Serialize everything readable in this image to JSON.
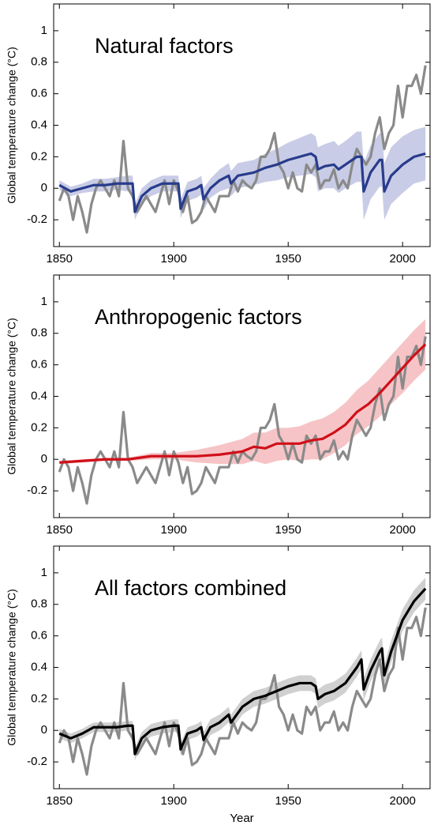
{
  "chart_data": [
    {
      "type": "line",
      "title": "Natural factors",
      "y_label": "Global temperature change (°C)",
      "xlim": [
        1847.5,
        2012
      ],
      "xticks": [
        1850,
        1900,
        1950,
        2000
      ],
      "ylim": [
        -0.37,
        1.17
      ],
      "yticks": [
        -0.2,
        0,
        0.2,
        0.4,
        0.6,
        0.8,
        1
      ],
      "observed": {
        "color": "#8a8a8a",
        "x": [
          1850,
          1852,
          1854,
          1856,
          1858,
          1860,
          1862,
          1864,
          1866,
          1868,
          1870,
          1872,
          1874,
          1876,
          1878,
          1880,
          1882,
          1884,
          1886,
          1888,
          1890,
          1892,
          1894,
          1896,
          1898,
          1900,
          1902,
          1904,
          1906,
          1908,
          1910,
          1912,
          1914,
          1916,
          1918,
          1920,
          1922,
          1924,
          1926,
          1928,
          1930,
          1932,
          1934,
          1936,
          1938,
          1940,
          1942,
          1944,
          1946,
          1948,
          1950,
          1952,
          1954,
          1956,
          1958,
          1960,
          1962,
          1964,
          1966,
          1968,
          1970,
          1972,
          1974,
          1976,
          1978,
          1980,
          1982,
          1984,
          1986,
          1988,
          1990,
          1992,
          1994,
          1996,
          1998,
          2000,
          2002,
          2004,
          2006,
          2008,
          2010
        ],
        "values": [
          -0.08,
          0.0,
          -0.05,
          -0.2,
          -0.05,
          -0.15,
          -0.28,
          -0.1,
          0.0,
          0.05,
          0.0,
          -0.05,
          0.05,
          -0.05,
          0.3,
          0.0,
          -0.05,
          -0.15,
          -0.1,
          -0.05,
          -0.1,
          -0.15,
          -0.05,
          0.05,
          -0.1,
          0.05,
          -0.02,
          -0.15,
          -0.05,
          -0.22,
          -0.2,
          -0.15,
          -0.05,
          -0.1,
          -0.15,
          -0.05,
          -0.05,
          -0.05,
          0.05,
          -0.02,
          0.05,
          0.02,
          0.0,
          0.05,
          0.2,
          0.2,
          0.25,
          0.35,
          0.15,
          0.1,
          0.0,
          0.1,
          0.0,
          -0.02,
          0.15,
          0.1,
          0.15,
          0.0,
          0.05,
          0.05,
          0.12,
          0.0,
          0.05,
          0.0,
          0.15,
          0.25,
          0.2,
          0.15,
          0.2,
          0.35,
          0.45,
          0.25,
          0.35,
          0.4,
          0.65,
          0.45,
          0.65,
          0.65,
          0.72,
          0.6,
          0.78
        ]
      },
      "model": {
        "color": "#283c8c",
        "x": [
          1850,
          1855,
          1860,
          1865,
          1870,
          1875,
          1880,
          1882,
          1883,
          1886,
          1890,
          1895,
          1900,
          1902,
          1903,
          1906,
          1910,
          1912,
          1913,
          1916,
          1920,
          1924,
          1925,
          1928,
          1935,
          1940,
          1945,
          1950,
          1955,
          1960,
          1962,
          1963,
          1966,
          1970,
          1972,
          1975,
          1980,
          1982,
          1983,
          1986,
          1990,
          1991,
          1992,
          1995,
          2000,
          2005,
          2010
        ],
        "values": [
          0.02,
          -0.02,
          0.0,
          0.02,
          0.02,
          0.03,
          0.03,
          0.03,
          -0.15,
          -0.05,
          0.0,
          0.03,
          0.03,
          0.03,
          -0.13,
          -0.02,
          0.0,
          0.02,
          -0.07,
          0.0,
          0.05,
          0.08,
          0.03,
          0.08,
          0.1,
          0.13,
          0.15,
          0.18,
          0.2,
          0.22,
          0.2,
          0.12,
          0.14,
          0.15,
          0.12,
          0.15,
          0.2,
          0.2,
          -0.02,
          0.1,
          0.18,
          0.18,
          -0.02,
          0.08,
          0.15,
          0.2,
          0.22
        ]
      },
      "band": {
        "color": "#c9cce6",
        "lower": [
          -0.01,
          -0.05,
          -0.03,
          -0.02,
          -0.02,
          -0.01,
          -0.02,
          -0.02,
          -0.2,
          -0.1,
          -0.05,
          -0.02,
          -0.02,
          -0.02,
          -0.19,
          -0.08,
          -0.06,
          -0.04,
          -0.14,
          -0.06,
          -0.02,
          0.0,
          -0.05,
          0.0,
          0.02,
          0.04,
          0.05,
          0.07,
          0.08,
          0.09,
          0.07,
          -0.02,
          0.0,
          0.0,
          -0.03,
          0.0,
          0.04,
          0.04,
          -0.2,
          -0.07,
          0.01,
          0.01,
          -0.2,
          -0.1,
          -0.03,
          0.03,
          0.05
        ],
        "upper": [
          0.05,
          0.01,
          0.03,
          0.06,
          0.06,
          0.07,
          0.08,
          0.08,
          -0.1,
          0.0,
          0.05,
          0.08,
          0.08,
          0.08,
          -0.07,
          0.04,
          0.06,
          0.08,
          0.0,
          0.06,
          0.12,
          0.16,
          0.11,
          0.16,
          0.18,
          0.22,
          0.25,
          0.29,
          0.32,
          0.35,
          0.33,
          0.26,
          0.28,
          0.3,
          0.27,
          0.3,
          0.36,
          0.36,
          0.16,
          0.27,
          0.35,
          0.35,
          0.16,
          0.26,
          0.33,
          0.37,
          0.39
        ]
      }
    },
    {
      "type": "line",
      "title": "Anthropogenic factors",
      "y_label": "Global temperature change (°C)",
      "xlim": [
        1847.5,
        2012
      ],
      "xticks": [
        1850,
        1900,
        1950,
        2000
      ],
      "ylim": [
        -0.37,
        1.17
      ],
      "yticks": [
        -0.2,
        0,
        0.2,
        0.4,
        0.6,
        0.8,
        1
      ],
      "observed": {
        "color": "#8a8a8a",
        "x": [
          1850,
          1852,
          1854,
          1856,
          1858,
          1860,
          1862,
          1864,
          1866,
          1868,
          1870,
          1872,
          1874,
          1876,
          1878,
          1880,
          1882,
          1884,
          1886,
          1888,
          1890,
          1892,
          1894,
          1896,
          1898,
          1900,
          1902,
          1904,
          1906,
          1908,
          1910,
          1912,
          1914,
          1916,
          1918,
          1920,
          1922,
          1924,
          1926,
          1928,
          1930,
          1932,
          1934,
          1936,
          1938,
          1940,
          1942,
          1944,
          1946,
          1948,
          1950,
          1952,
          1954,
          1956,
          1958,
          1960,
          1962,
          1964,
          1966,
          1968,
          1970,
          1972,
          1974,
          1976,
          1978,
          1980,
          1982,
          1984,
          1986,
          1988,
          1990,
          1992,
          1994,
          1996,
          1998,
          2000,
          2002,
          2004,
          2006,
          2008,
          2010
        ],
        "values": [
          -0.08,
          0.0,
          -0.05,
          -0.2,
          -0.05,
          -0.15,
          -0.28,
          -0.1,
          0.0,
          0.05,
          0.0,
          -0.05,
          0.05,
          -0.05,
          0.3,
          0.0,
          -0.05,
          -0.15,
          -0.1,
          -0.05,
          -0.1,
          -0.15,
          -0.05,
          0.05,
          -0.1,
          0.05,
          -0.02,
          -0.15,
          -0.05,
          -0.22,
          -0.2,
          -0.15,
          -0.05,
          -0.1,
          -0.15,
          -0.05,
          -0.05,
          -0.05,
          0.05,
          -0.02,
          0.05,
          0.02,
          0.0,
          0.05,
          0.2,
          0.2,
          0.25,
          0.35,
          0.15,
          0.1,
          0.0,
          0.1,
          0.0,
          -0.02,
          0.15,
          0.1,
          0.15,
          0.0,
          0.05,
          0.05,
          0.12,
          0.0,
          0.05,
          0.0,
          0.15,
          0.25,
          0.2,
          0.15,
          0.2,
          0.35,
          0.45,
          0.25,
          0.35,
          0.4,
          0.65,
          0.45,
          0.65,
          0.65,
          0.72,
          0.6,
          0.78
        ]
      },
      "model": {
        "color": "#d0101a",
        "x": [
          1850,
          1860,
          1870,
          1880,
          1890,
          1900,
          1910,
          1920,
          1930,
          1935,
          1940,
          1945,
          1950,
          1955,
          1960,
          1965,
          1970,
          1975,
          1980,
          1985,
          1990,
          1995,
          2000,
          2005,
          2010
        ],
        "values": [
          -0.02,
          -0.01,
          0.0,
          0.0,
          0.02,
          0.02,
          0.02,
          0.03,
          0.05,
          0.08,
          0.07,
          0.1,
          0.1,
          0.1,
          0.12,
          0.13,
          0.17,
          0.22,
          0.3,
          0.35,
          0.42,
          0.5,
          0.58,
          0.66,
          0.73
        ]
      },
      "band": {
        "color": "#f6c4c6",
        "lower": [
          -0.03,
          -0.02,
          -0.01,
          -0.01,
          0.0,
          0.0,
          -0.02,
          -0.03,
          -0.03,
          -0.01,
          -0.03,
          -0.01,
          0.0,
          -0.01,
          0.0,
          0.0,
          0.04,
          0.09,
          0.16,
          0.21,
          0.27,
          0.35,
          0.42,
          0.5,
          0.57
        ],
        "upper": [
          -0.01,
          0.0,
          0.01,
          0.01,
          0.04,
          0.04,
          0.06,
          0.09,
          0.13,
          0.17,
          0.17,
          0.2,
          0.2,
          0.21,
          0.24,
          0.26,
          0.3,
          0.36,
          0.44,
          0.5,
          0.58,
          0.66,
          0.74,
          0.82,
          0.89
        ]
      }
    },
    {
      "type": "line",
      "title": "All factors combined",
      "y_label": "Global temperature change (°C)",
      "x_label": "Year",
      "xlim": [
        1847.5,
        2012
      ],
      "xticks": [
        1850,
        1900,
        1950,
        2000
      ],
      "ylim": [
        -0.37,
        1.17
      ],
      "yticks": [
        -0.2,
        0,
        0.2,
        0.4,
        0.6,
        0.8,
        1
      ],
      "observed": {
        "color": "#8a8a8a",
        "x": [
          1850,
          1852,
          1854,
          1856,
          1858,
          1860,
          1862,
          1864,
          1866,
          1868,
          1870,
          1872,
          1874,
          1876,
          1878,
          1880,
          1882,
          1884,
          1886,
          1888,
          1890,
          1892,
          1894,
          1896,
          1898,
          1900,
          1902,
          1904,
          1906,
          1908,
          1910,
          1912,
          1914,
          1916,
          1918,
          1920,
          1922,
          1924,
          1926,
          1928,
          1930,
          1932,
          1934,
          1936,
          1938,
          1940,
          1942,
          1944,
          1946,
          1948,
          1950,
          1952,
          1954,
          1956,
          1958,
          1960,
          1962,
          1964,
          1966,
          1968,
          1970,
          1972,
          1974,
          1976,
          1978,
          1980,
          1982,
          1984,
          1986,
          1988,
          1990,
          1992,
          1994,
          1996,
          1998,
          2000,
          2002,
          2004,
          2006,
          2008,
          2010
        ],
        "values": [
          -0.08,
          0.0,
          -0.05,
          -0.2,
          -0.05,
          -0.15,
          -0.28,
          -0.1,
          0.0,
          0.05,
          0.0,
          -0.05,
          0.05,
          -0.05,
          0.3,
          0.0,
          -0.05,
          -0.15,
          -0.1,
          -0.05,
          -0.1,
          -0.15,
          -0.05,
          0.05,
          -0.1,
          0.05,
          -0.02,
          -0.15,
          -0.05,
          -0.22,
          -0.2,
          -0.15,
          -0.05,
          -0.1,
          -0.15,
          -0.05,
          -0.05,
          -0.05,
          0.05,
          -0.02,
          0.05,
          0.02,
          0.0,
          0.05,
          0.2,
          0.2,
          0.25,
          0.35,
          0.15,
          0.1,
          0.0,
          0.1,
          0.0,
          -0.02,
          0.15,
          0.1,
          0.15,
          0.0,
          0.05,
          0.05,
          0.12,
          0.0,
          0.05,
          0.0,
          0.15,
          0.25,
          0.2,
          0.15,
          0.2,
          0.35,
          0.45,
          0.25,
          0.35,
          0.4,
          0.65,
          0.45,
          0.65,
          0.65,
          0.72,
          0.6,
          0.78
        ]
      },
      "model": {
        "color": "#000000",
        "x": [
          1850,
          1855,
          1860,
          1865,
          1870,
          1875,
          1880,
          1882,
          1883,
          1886,
          1890,
          1895,
          1900,
          1902,
          1903,
          1906,
          1910,
          1912,
          1913,
          1916,
          1920,
          1924,
          1925,
          1930,
          1935,
          1940,
          1945,
          1950,
          1955,
          1960,
          1962,
          1963,
          1966,
          1970,
          1975,
          1980,
          1982,
          1983,
          1986,
          1990,
          1991,
          1992,
          1995,
          2000,
          2005,
          2010
        ],
        "values": [
          -0.02,
          -0.05,
          -0.02,
          0.02,
          0.02,
          0.02,
          0.03,
          0.03,
          -0.15,
          -0.05,
          0.0,
          0.02,
          0.03,
          0.03,
          -0.12,
          -0.02,
          0.0,
          0.02,
          -0.06,
          0.02,
          0.05,
          0.1,
          0.05,
          0.15,
          0.2,
          0.22,
          0.25,
          0.28,
          0.3,
          0.3,
          0.28,
          0.2,
          0.23,
          0.25,
          0.3,
          0.4,
          0.45,
          0.26,
          0.38,
          0.5,
          0.52,
          0.35,
          0.5,
          0.7,
          0.82,
          0.9
        ]
      },
      "band": {
        "color": "#d0d0d0",
        "lower": [
          -0.05,
          -0.08,
          -0.05,
          -0.01,
          -0.01,
          -0.01,
          0.0,
          0.0,
          -0.19,
          -0.09,
          -0.04,
          -0.02,
          -0.01,
          -0.01,
          -0.16,
          -0.06,
          -0.04,
          -0.02,
          -0.11,
          -0.03,
          0.0,
          0.05,
          0.0,
          0.1,
          0.15,
          0.17,
          0.2,
          0.23,
          0.25,
          0.25,
          0.23,
          0.14,
          0.17,
          0.19,
          0.24,
          0.34,
          0.39,
          0.19,
          0.31,
          0.43,
          0.45,
          0.28,
          0.43,
          0.63,
          0.75,
          0.83
        ],
        "upper": [
          0.01,
          -0.02,
          0.01,
          0.05,
          0.05,
          0.05,
          0.06,
          0.06,
          -0.11,
          -0.01,
          0.04,
          0.06,
          0.07,
          0.07,
          -0.08,
          0.02,
          0.04,
          0.06,
          -0.01,
          0.07,
          0.1,
          0.15,
          0.1,
          0.2,
          0.25,
          0.27,
          0.3,
          0.33,
          0.35,
          0.35,
          0.33,
          0.26,
          0.29,
          0.31,
          0.36,
          0.46,
          0.51,
          0.33,
          0.45,
          0.57,
          0.59,
          0.42,
          0.57,
          0.77,
          0.89,
          0.97
        ]
      }
    }
  ]
}
